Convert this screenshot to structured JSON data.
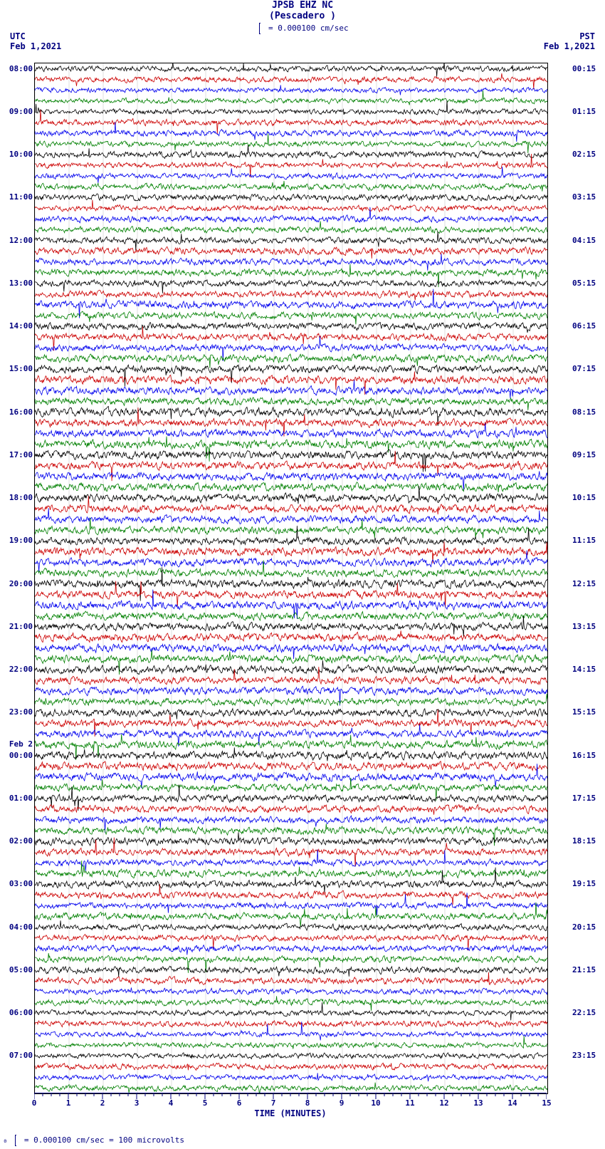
{
  "header": {
    "station": "JPSB EHZ NC",
    "location": "(Pescadero )",
    "scale_text": "= 0.000100 cm/sec"
  },
  "timezones": {
    "left": {
      "tz": "UTC",
      "date": "Feb 1,2021"
    },
    "right": {
      "tz": "PST",
      "date": "Feb 1,2021"
    }
  },
  "plot": {
    "n_traces": 96,
    "trace_colors": [
      "#000000",
      "#cc0000",
      "#0000ee",
      "#008000"
    ],
    "background": "#ffffff",
    "grid_color": "#000000",
    "x_minutes": [
      0,
      1,
      2,
      3,
      4,
      5,
      6,
      7,
      8,
      9,
      10,
      11,
      12,
      13,
      14,
      15
    ],
    "x_title": "TIME (MINUTES)",
    "amplitude_base": 2.2,
    "amplitude_variation": 1.4,
    "spike_prob": 0.004,
    "spike_scale": 6.0,
    "samples_per_trace": 900
  },
  "left_labels": [
    {
      "i": 0,
      "t": "08:00"
    },
    {
      "i": 4,
      "t": "09:00"
    },
    {
      "i": 8,
      "t": "10:00"
    },
    {
      "i": 12,
      "t": "11:00"
    },
    {
      "i": 16,
      "t": "12:00"
    },
    {
      "i": 20,
      "t": "13:00"
    },
    {
      "i": 24,
      "t": "14:00"
    },
    {
      "i": 28,
      "t": "15:00"
    },
    {
      "i": 32,
      "t": "16:00"
    },
    {
      "i": 36,
      "t": "17:00"
    },
    {
      "i": 40,
      "t": "18:00"
    },
    {
      "i": 44,
      "t": "19:00"
    },
    {
      "i": 48,
      "t": "20:00"
    },
    {
      "i": 52,
      "t": "21:00"
    },
    {
      "i": 56,
      "t": "22:00"
    },
    {
      "i": 60,
      "t": "23:00"
    },
    {
      "i": 63,
      "t": "Feb 2"
    },
    {
      "i": 64,
      "t": "00:00"
    },
    {
      "i": 68,
      "t": "01:00"
    },
    {
      "i": 72,
      "t": "02:00"
    },
    {
      "i": 76,
      "t": "03:00"
    },
    {
      "i": 80,
      "t": "04:00"
    },
    {
      "i": 84,
      "t": "05:00"
    },
    {
      "i": 88,
      "t": "06:00"
    },
    {
      "i": 92,
      "t": "07:00"
    }
  ],
  "right_labels": [
    {
      "i": 0,
      "t": "00:15"
    },
    {
      "i": 4,
      "t": "01:15"
    },
    {
      "i": 8,
      "t": "02:15"
    },
    {
      "i": 12,
      "t": "03:15"
    },
    {
      "i": 16,
      "t": "04:15"
    },
    {
      "i": 20,
      "t": "05:15"
    },
    {
      "i": 24,
      "t": "06:15"
    },
    {
      "i": 28,
      "t": "07:15"
    },
    {
      "i": 32,
      "t": "08:15"
    },
    {
      "i": 36,
      "t": "09:15"
    },
    {
      "i": 40,
      "t": "10:15"
    },
    {
      "i": 44,
      "t": "11:15"
    },
    {
      "i": 48,
      "t": "12:15"
    },
    {
      "i": 52,
      "t": "13:15"
    },
    {
      "i": 56,
      "t": "14:15"
    },
    {
      "i": 60,
      "t": "15:15"
    },
    {
      "i": 64,
      "t": "16:15"
    },
    {
      "i": 68,
      "t": "17:15"
    },
    {
      "i": 72,
      "t": "18:15"
    },
    {
      "i": 76,
      "t": "19:15"
    },
    {
      "i": 80,
      "t": "20:15"
    },
    {
      "i": 84,
      "t": "21:15"
    },
    {
      "i": 88,
      "t": "22:15"
    },
    {
      "i": 92,
      "t": "23:15"
    }
  ],
  "footer": {
    "text": "= 0.000100 cm/sec =    100 microvolts"
  }
}
